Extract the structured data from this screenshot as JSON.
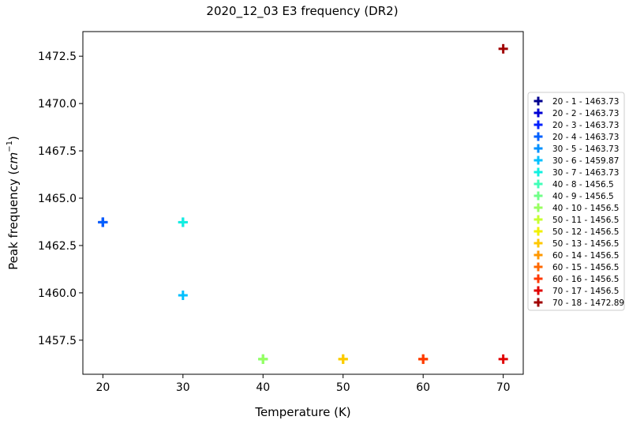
{
  "chart_data": {
    "type": "scatter",
    "title": "2020_12_03 E3 frequency (DR2)",
    "xlabel": "Temperature (K)",
    "ylabel_main": "Peak frequency (",
    "ylabel_unit": "cm",
    "ylabel_exp": "−1",
    "ylabel_close": ")",
    "xlim": [
      17.5,
      72.5
    ],
    "ylim": [
      1455.7,
      1473.8
    ],
    "xticks": [
      20,
      30,
      40,
      50,
      60,
      70
    ],
    "yticks": [
      1457.5,
      1460.0,
      1462.5,
      1465.0,
      1467.5,
      1470.0,
      1472.5
    ],
    "xtick_labels": [
      "20",
      "30",
      "40",
      "50",
      "60",
      "70"
    ],
    "ytick_labels": [
      "1457.5",
      "1460.0",
      "1462.5",
      "1465.0",
      "1467.5",
      "1470.0",
      "1472.5"
    ],
    "marker": "+",
    "legend_position": "outside-right",
    "series": [
      {
        "name": "20 - 1 - 1463.73",
        "x": 20,
        "y": 1463.73,
        "color": "#00008f"
      },
      {
        "name": "20 - 2 - 1463.73",
        "x": 20,
        "y": 1463.73,
        "color": "#0000d4"
      },
      {
        "name": "20 - 3 - 1463.73",
        "x": 20,
        "y": 1463.73,
        "color": "#0020ff"
      },
      {
        "name": "20 - 4 - 1463.73",
        "x": 20,
        "y": 1463.73,
        "color": "#0060ff"
      },
      {
        "name": "30 - 5 - 1463.73",
        "x": 30,
        "y": 1463.73,
        "color": "#0090ff"
      },
      {
        "name": "30 - 6 - 1459.87",
        "x": 30,
        "y": 1459.87,
        "color": "#00c0ff"
      },
      {
        "name": "30 - 7 - 1463.73",
        "x": 30,
        "y": 1463.73,
        "color": "#10f0e0"
      },
      {
        "name": "40 - 8 - 1456.5",
        "x": 40,
        "y": 1456.5,
        "color": "#40ffb8"
      },
      {
        "name": "40 - 9 - 1456.5",
        "x": 40,
        "y": 1456.5,
        "color": "#70ff88"
      },
      {
        "name": "40 - 10 - 1456.5",
        "x": 40,
        "y": 1456.5,
        "color": "#98ff60"
      },
      {
        "name": "50 - 11 - 1456.5",
        "x": 50,
        "y": 1456.5,
        "color": "#c8ff30"
      },
      {
        "name": "50 - 12 - 1456.5",
        "x": 50,
        "y": 1456.5,
        "color": "#f0f000"
      },
      {
        "name": "50 - 13 - 1456.5",
        "x": 50,
        "y": 1456.5,
        "color": "#ffc800"
      },
      {
        "name": "60 - 14 - 1456.5",
        "x": 60,
        "y": 1456.5,
        "color": "#ff9800"
      },
      {
        "name": "60 - 15 - 1456.5",
        "x": 60,
        "y": 1456.5,
        "color": "#ff6800"
      },
      {
        "name": "60 - 16 - 1456.5",
        "x": 60,
        "y": 1456.5,
        "color": "#ff3800"
      },
      {
        "name": "70 - 17 - 1456.5",
        "x": 70,
        "y": 1456.5,
        "color": "#e00000"
      },
      {
        "name": "70 - 18 - 1472.89",
        "x": 70,
        "y": 1472.89,
        "color": "#a00000"
      }
    ]
  }
}
